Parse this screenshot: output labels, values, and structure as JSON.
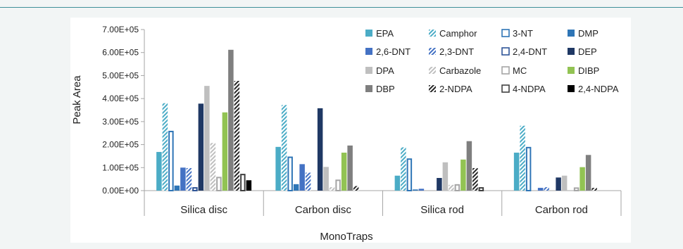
{
  "chart_data": {
    "type": "bar",
    "title": "",
    "xlabel": "MonoTraps",
    "ylabel": "Peak Area",
    "ylim": [
      0,
      700000
    ],
    "yticks": [
      "0.00E+00",
      "1.00E+05",
      "2.00E+05",
      "3.00E+05",
      "4.00E+05",
      "5.00E+05",
      "6.00E+05",
      "7.00E+05"
    ],
    "categories": [
      "Silica disc",
      "Carbon disc",
      "Silica rod",
      "Carbon rod"
    ],
    "grid": false,
    "legend_position": "top-right",
    "series": [
      {
        "name": "EPA",
        "color": "#4bacc6",
        "pattern": "solid",
        "values": [
          168000,
          190000,
          65000,
          165000
        ]
      },
      {
        "name": "Camphor",
        "color": "#4bacc6",
        "pattern": "diag",
        "values": [
          380000,
          372000,
          188000,
          282000
        ]
      },
      {
        "name": "3-NT",
        "color": "#2e75b6",
        "pattern": "outline",
        "values": [
          260000,
          148000,
          140000,
          190000
        ]
      },
      {
        "name": "DMP",
        "color": "#2e75b6",
        "pattern": "solid",
        "values": [
          22000,
          28000,
          5000,
          0
        ]
      },
      {
        "name": "2,6-DNT",
        "color": "#4472c4",
        "pattern": "solid",
        "values": [
          100000,
          115000,
          8000,
          12000
        ]
      },
      {
        "name": "2,3-DNT",
        "color": "#4472c4",
        "pattern": "diag",
        "values": [
          98000,
          78000,
          0,
          15000
        ]
      },
      {
        "name": "2,4-DNT",
        "color": "#2f5597",
        "pattern": "outline",
        "values": [
          15000,
          0,
          0,
          0
        ]
      },
      {
        "name": "DEP",
        "color": "#1f3864",
        "pattern": "solid",
        "values": [
          378000,
          358000,
          55000,
          57000
        ]
      },
      {
        "name": "DPA",
        "color": "#bfbfbf",
        "pattern": "solid",
        "values": [
          455000,
          103000,
          123000,
          65000
        ]
      },
      {
        "name": "Carbazole",
        "color": "#bfbfbf",
        "pattern": "diag",
        "values": [
          207000,
          15000,
          25000,
          0
        ]
      },
      {
        "name": "MC",
        "color": "#a5a5a5",
        "pattern": "outline",
        "values": [
          60000,
          48000,
          28000,
          14000
        ]
      },
      {
        "name": "DIBP",
        "color": "#92c353",
        "pattern": "solid",
        "values": [
          340000,
          165000,
          135000,
          102000
        ]
      },
      {
        "name": "DBP",
        "color": "#7f7f7f",
        "pattern": "solid",
        "values": [
          612000,
          196000,
          215000,
          155000
        ]
      },
      {
        "name": "2-NDPA",
        "color": "#262626",
        "pattern": "diag",
        "values": [
          477000,
          20000,
          98000,
          12000
        ]
      },
      {
        "name": "4-NDPA",
        "color": "#404040",
        "pattern": "outline",
        "values": [
          73000,
          0,
          15000,
          0
        ]
      },
      {
        "name": "2,4-NDPA",
        "color": "#000000",
        "pattern": "solid",
        "values": [
          45000,
          0,
          0,
          0
        ]
      }
    ]
  }
}
